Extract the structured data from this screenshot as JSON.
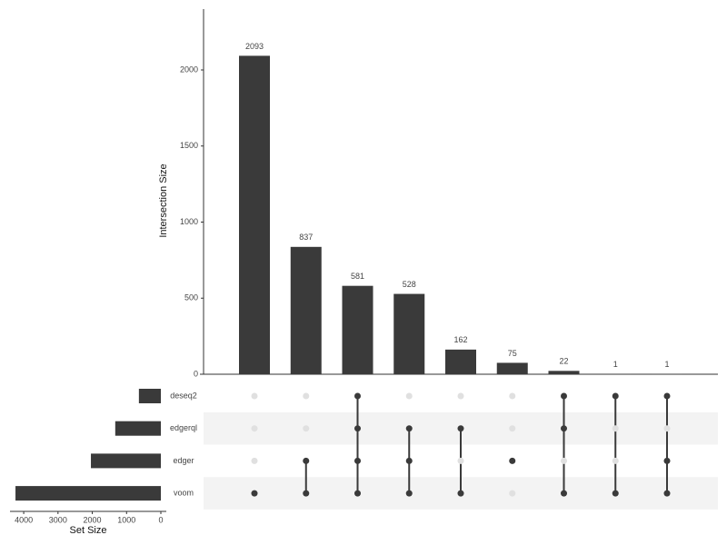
{
  "chart_data": {
    "type": "upset",
    "y_label": "Intersection Size",
    "x_label": "Set Size",
    "color": "#3a3a3a",
    "intersections": {
      "values": [
        2093,
        837,
        581,
        528,
        162,
        75,
        22,
        1,
        1
      ],
      "ylim": [
        0,
        2400
      ],
      "yticks": [
        0,
        500,
        1000,
        1500,
        2000
      ]
    },
    "sets": {
      "names": [
        "deseq2",
        "edgerql",
        "edger",
        "voom"
      ],
      "values": [
        640,
        1330,
        2040,
        4240
      ],
      "xlim": [
        4400,
        0
      ],
      "xticks": [
        4000,
        3000,
        2000,
        1000,
        0
      ]
    },
    "membership": [
      [
        false,
        false,
        false,
        true
      ],
      [
        false,
        false,
        true,
        true
      ],
      [
        true,
        true,
        true,
        true
      ],
      [
        false,
        true,
        true,
        true
      ],
      [
        false,
        true,
        false,
        true
      ],
      [
        false,
        false,
        true,
        false
      ],
      [
        true,
        true,
        false,
        true
      ],
      [
        true,
        false,
        false,
        true
      ],
      [
        true,
        false,
        true,
        true
      ]
    ]
  }
}
